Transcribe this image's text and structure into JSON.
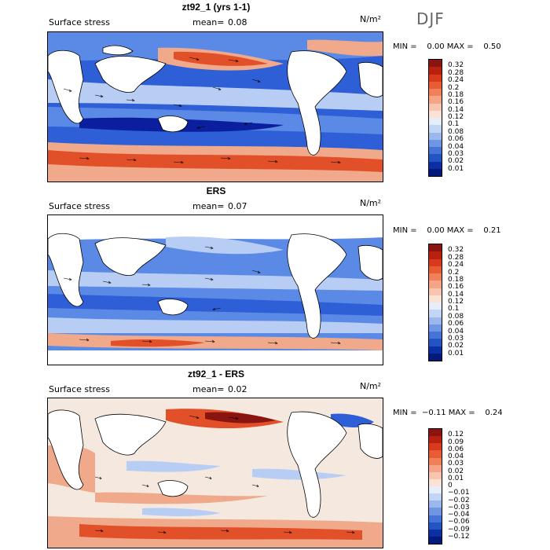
{
  "season": "DJF",
  "units": "N/m²",
  "colors": {
    "deep_blue": "#0b1f9e",
    "blue": "#2f5fd6",
    "mid_blue": "#5b8ae6",
    "light_blue": "#b7cdf4",
    "pale": "#f4e8df",
    "light_red": "#f0a98a",
    "red": "#e2502a",
    "dark_red": "#8a1410"
  },
  "panels": [
    {
      "title": "zt92_1 (yrs 1-1)",
      "subtitle": "Surface stress",
      "mean_label": "mean=",
      "mean_value": "0.08",
      "minmax": "MIN =    0.00 MAX =    0.50",
      "colorbar": {
        "labels": [
          "0.32",
          "0.28",
          "0.24",
          "0.2",
          "0.18",
          "0.16",
          "0.14",
          "0.12",
          "0.1",
          "0.08",
          "0.06",
          "0.04",
          "0.03",
          "0.02",
          "0.01"
        ],
        "colors": [
          "#8a1410",
          "#b8200f",
          "#d9391c",
          "#e85c34",
          "#f0805a",
          "#f5a485",
          "#f8c6b0",
          "#fbe2d5",
          "#e6eefb",
          "#c3d5f5",
          "#9ab8ee",
          "#6f96e3",
          "#4574d6",
          "#2454c4",
          "#0c2fa3",
          "#041a7a"
        ]
      }
    },
    {
      "title": "ERS",
      "subtitle": "Surface stress",
      "mean_label": "mean=",
      "mean_value": "0.07",
      "minmax": "MIN =    0.00 MAX =    0.21",
      "colorbar": {
        "labels": [
          "0.32",
          "0.28",
          "0.24",
          "0.2",
          "0.18",
          "0.16",
          "0.14",
          "0.12",
          "0.1",
          "0.08",
          "0.06",
          "0.04",
          "0.03",
          "0.02",
          "0.01"
        ],
        "colors": [
          "#8a1410",
          "#b8200f",
          "#d9391c",
          "#e85c34",
          "#f0805a",
          "#f5a485",
          "#f8c6b0",
          "#fbe2d5",
          "#e6eefb",
          "#c3d5f5",
          "#9ab8ee",
          "#6f96e3",
          "#4574d6",
          "#2454c4",
          "#0c2fa3",
          "#041a7a"
        ]
      }
    },
    {
      "title": "zt92_1 - ERS",
      "subtitle": "Surface stress",
      "mean_label": "mean=",
      "mean_value": "0.02",
      "minmax": "MIN =  −0.11 MAX =    0.24",
      "colorbar": {
        "labels": [
          "0.12",
          "0.09",
          "0.06",
          "0.04",
          "0.03",
          "0.02",
          "0.01",
          "0",
          "−0.01",
          "−0.02",
          "−0.03",
          "−0.04",
          "−0.06",
          "−0.09",
          "−0.12"
        ],
        "colors": [
          "#8a1410",
          "#b8200f",
          "#d9391c",
          "#e85c34",
          "#f0805a",
          "#f5a485",
          "#f8c6b0",
          "#fbe2d5",
          "#e6eefb",
          "#c3d5f5",
          "#9ab8ee",
          "#6f96e3",
          "#4574d6",
          "#2454c4",
          "#0c2fa3",
          "#041a7a"
        ]
      }
    }
  ]
}
